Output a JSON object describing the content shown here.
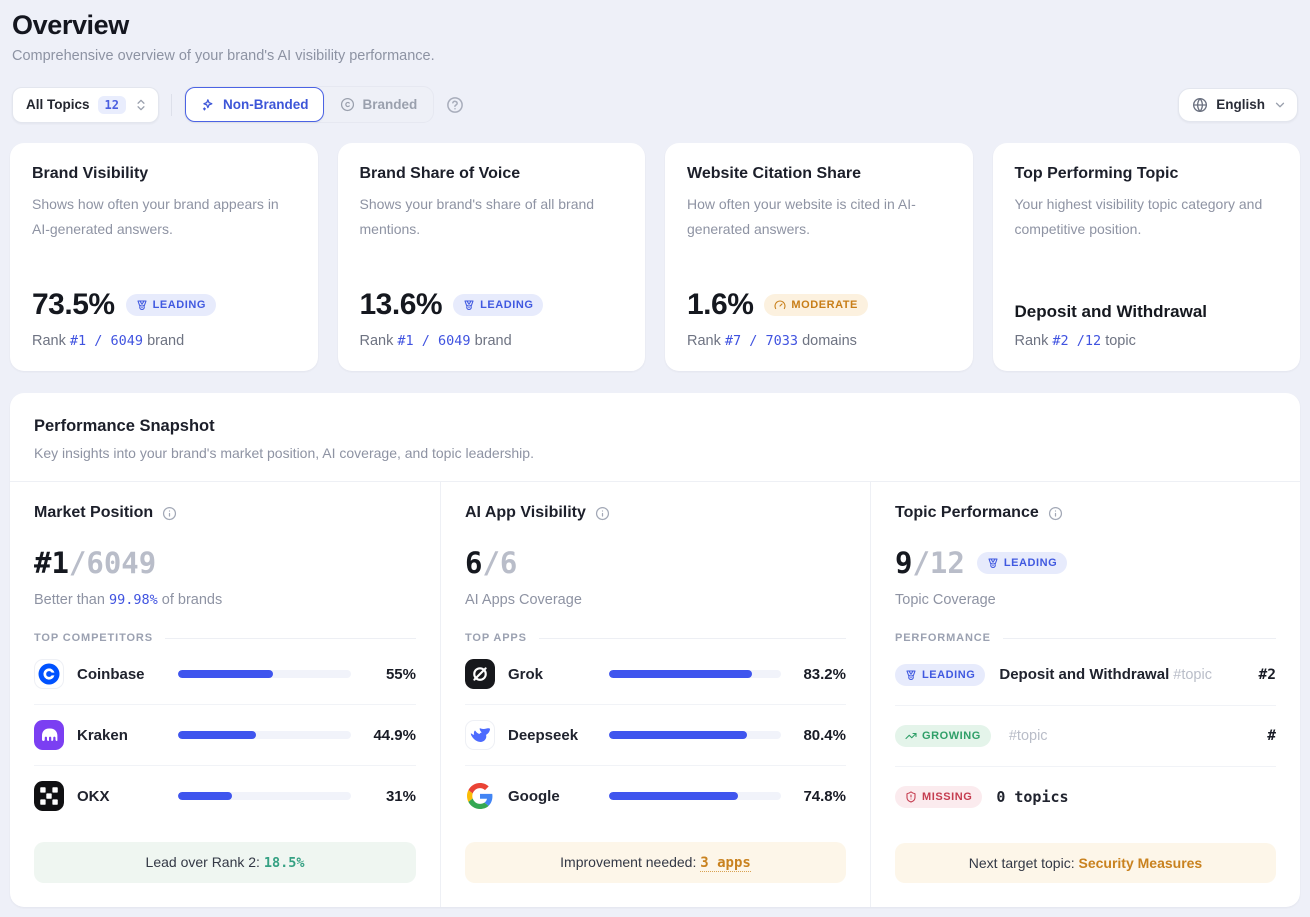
{
  "page": {
    "title": "Overview",
    "subtitle": "Comprehensive overview of your brand's AI visibility performance."
  },
  "filters": {
    "topics_label": "All Topics",
    "topics_count": "12",
    "nonbranded_label": "Non-Branded",
    "branded_label": "Branded",
    "language_label": "English"
  },
  "icons": {
    "topics_sort": "chevrons-up-down",
    "nonbranded": "sparkles",
    "branded": "copyright",
    "help": "circle-question",
    "language": "globe",
    "language_caret": "chevron-down",
    "column_info": "info-circle",
    "leading": "medal",
    "moderate": "gauge",
    "growing": "trending-up",
    "missing": "shield-alert"
  },
  "metric_cards": [
    {
      "title": "Brand Visibility",
      "description": "Shows how often your brand appears in AI-generated answers.",
      "value": "73.5%",
      "badge": "LEADING",
      "rank_prefix": "Rank ",
      "rank_value": "#1 / 6049",
      "rank_suffix": " brand"
    },
    {
      "title": "Brand Share of Voice",
      "description": "Shows your brand's share of all brand mentions.",
      "value": "13.6%",
      "badge": "LEADING",
      "rank_prefix": "Rank ",
      "rank_value": "#1 / 6049",
      "rank_suffix": " brand"
    },
    {
      "title": "Website Citation Share",
      "description": "How often your website is cited in AI-generated answers.",
      "value": "1.6%",
      "badge": "MODERATE",
      "rank_prefix": "Rank ",
      "rank_value": "#7 / 7033",
      "rank_suffix": " domains"
    },
    {
      "title": "Top Performing Topic",
      "description": "Your highest visibility topic category and competitive position.",
      "topic_name": "Deposit and Withdrawal",
      "rank_prefix": "Rank ",
      "rank_value": "#2 /12",
      "rank_suffix": " topic"
    }
  ],
  "snapshot": {
    "title": "Performance Snapshot",
    "subtitle": "Key insights into your brand's market position, AI coverage, and topic leadership.",
    "market": {
      "title": "Market Position",
      "value_primary": "#1",
      "value_secondary": "/6049",
      "subtext_prefix": "Better than ",
      "subtext_value": "99.98%",
      "subtext_suffix": " of brands",
      "section_label": "TOP COMPETITORS",
      "competitors": [
        {
          "name": "Coinbase",
          "value": "55%",
          "pct": 55
        },
        {
          "name": "Kraken",
          "value": "44.9%",
          "pct": 44.9
        },
        {
          "name": "OKX",
          "value": "31%",
          "pct": 31
        }
      ],
      "footer_label": "Lead over Rank 2: ",
      "footer_value": "18.5%"
    },
    "apps": {
      "title": "AI App Visibility",
      "value_primary": "6",
      "value_secondary": "/6",
      "subtext": "AI Apps Coverage",
      "section_label": "TOP APPS",
      "apps": [
        {
          "name": "Grok",
          "value": "83.2%",
          "pct": 83.2
        },
        {
          "name": "Deepseek",
          "value": "80.4%",
          "pct": 80.4
        },
        {
          "name": "Google",
          "value": "74.8%",
          "pct": 74.8
        }
      ],
      "footer_label": "Improvement needed: ",
      "footer_link": "3 apps"
    },
    "topics": {
      "title": "Topic Performance",
      "value_primary": "9",
      "value_secondary": "/12",
      "badge": "LEADING",
      "subtext": "Topic Coverage",
      "section_label": "PERFORMANCE",
      "rows": [
        {
          "badge": "LEADING",
          "text": "Deposit and Withdrawal",
          "tag": "#topic",
          "right": "#2"
        },
        {
          "badge": "GROWING",
          "text": "",
          "tag": "#topic",
          "right": "#"
        },
        {
          "badge": "MISSING",
          "text": "0 topics",
          "tag": "",
          "right": ""
        }
      ],
      "footer_label": "Next target topic: ",
      "footer_value": "Security Measures"
    }
  },
  "colors": {
    "accent_blue": "#3f55ee",
    "link_blue": "#4053e0",
    "leading_text": "#4059e0",
    "moderate_text": "#c87e18",
    "growing_text": "#2f9f68",
    "missing_text": "#c53d50",
    "footer_green": "#35a183",
    "footer_orange": "#c9821f"
  }
}
